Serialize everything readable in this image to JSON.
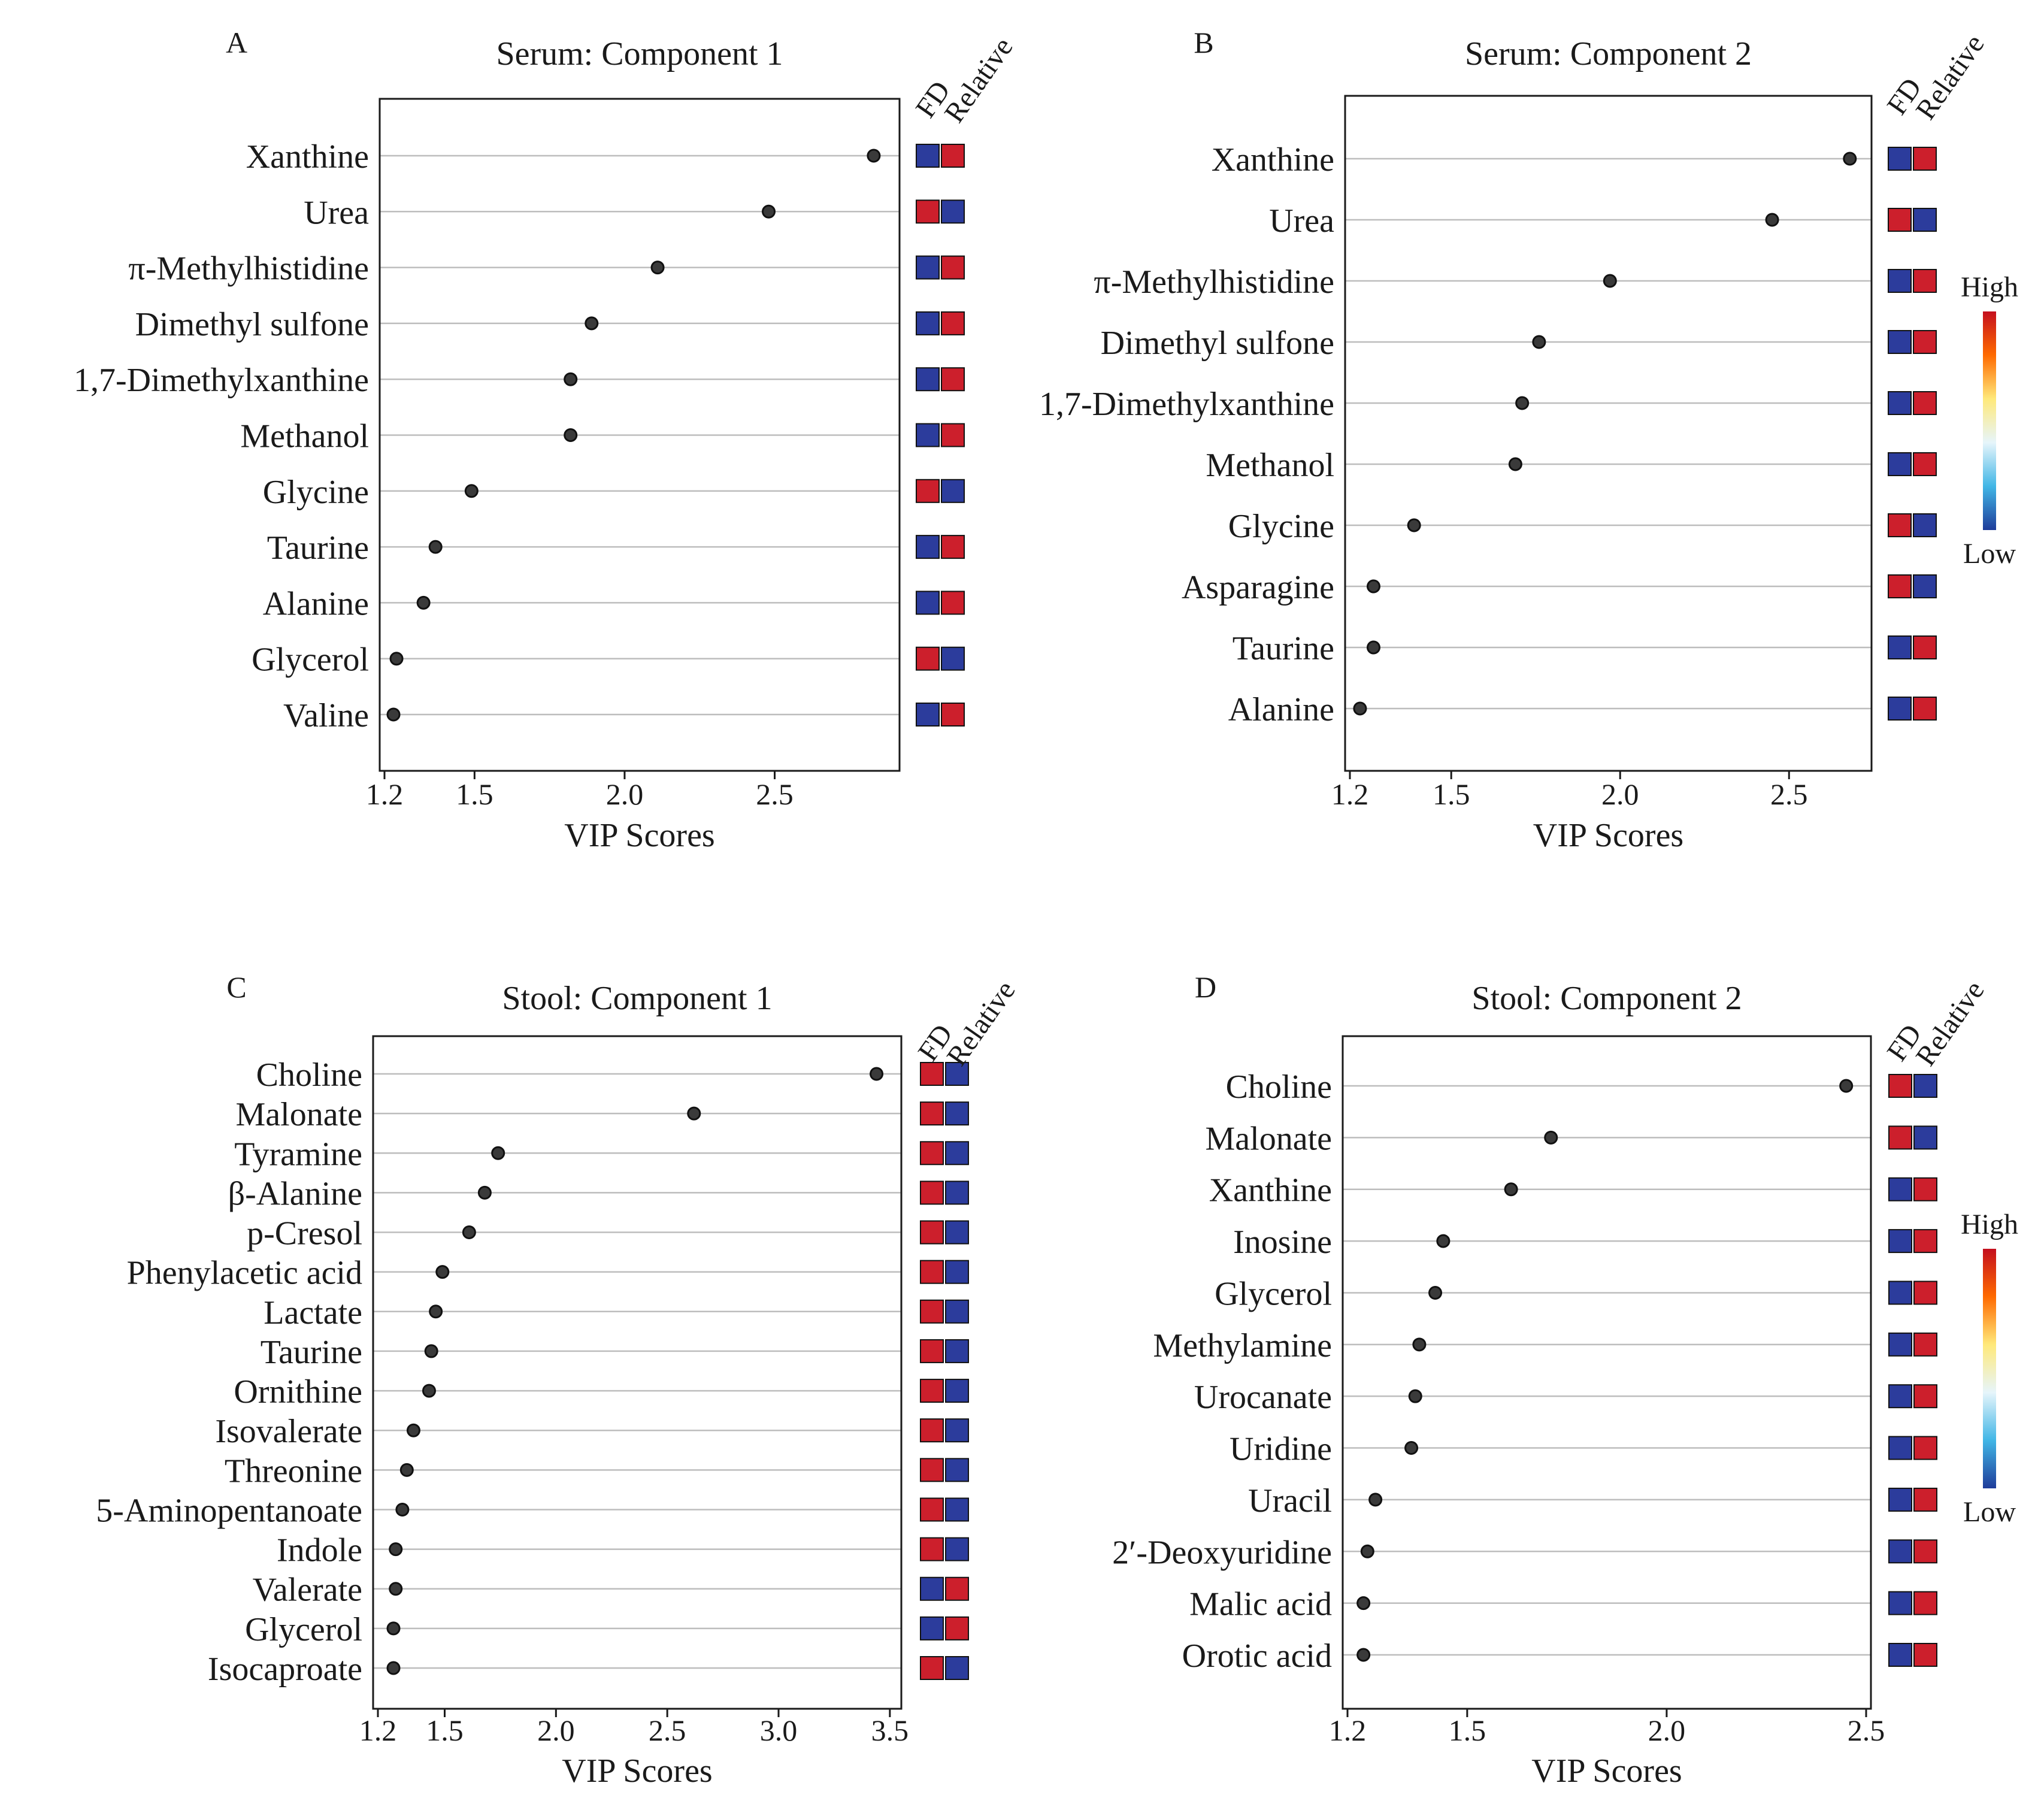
{
  "colors": {
    "fd_high": "#cc1f2c",
    "fd_low": "#2c3c9c",
    "dot": "#3a3a3a",
    "gridline": "#bdbdbd",
    "axis": "#1a1a1a",
    "scale_gradient": [
      "#c40f1e",
      "#ff6a00",
      "#ffe97a",
      "#e6f5fb",
      "#41b6e6",
      "#1e3c9a"
    ]
  },
  "header_labels": {
    "fd": "FD",
    "relative": "Relative"
  },
  "color_scale": {
    "high": "High",
    "low": "Low"
  },
  "chart_data": [
    {
      "panel": "A",
      "type": "scatter",
      "title": "Serum: Component 1",
      "xlabel": "VIP Scores",
      "xlim": [
        1.2,
        2.9
      ],
      "xticks": [
        "1.2",
        "1.5",
        "2.0",
        "2.5"
      ],
      "grid": true,
      "categories": [
        "Xanthine",
        "Urea",
        "π-Methylhistidine",
        "Dimethyl sulfone",
        "1,7-Dimethylxanthine",
        "Methanol",
        "Glycine",
        "Taurine",
        "Alanine",
        "Glycerol",
        "Valine"
      ],
      "values": [
        2.83,
        2.48,
        2.11,
        1.89,
        1.82,
        1.82,
        1.49,
        1.37,
        1.33,
        1.24,
        1.23
      ],
      "fd": [
        "low",
        "high",
        "low",
        "low",
        "low",
        "low",
        "high",
        "low",
        "low",
        "high",
        "low"
      ],
      "relative": [
        "high",
        "low",
        "high",
        "high",
        "high",
        "high",
        "low",
        "high",
        "high",
        "low",
        "high"
      ]
    },
    {
      "panel": "B",
      "type": "scatter",
      "title": "Serum: Component 2",
      "xlabel": "VIP Scores",
      "xlim": [
        1.2,
        2.73
      ],
      "xticks": [
        "1.2",
        "1.5",
        "2.0",
        "2.5"
      ],
      "grid": true,
      "categories": [
        "Xanthine",
        "Urea",
        "π-Methylhistidine",
        "Dimethyl sulfone",
        "1,7-Dimethylxanthine",
        "Methanol",
        "Glycine",
        "Asparagine",
        "Taurine",
        "Alanine"
      ],
      "values": [
        2.68,
        2.45,
        1.97,
        1.76,
        1.71,
        1.69,
        1.39,
        1.27,
        1.27,
        1.23
      ],
      "fd": [
        "low",
        "high",
        "low",
        "low",
        "low",
        "low",
        "high",
        "high",
        "low",
        "low"
      ],
      "relative": [
        "high",
        "low",
        "high",
        "high",
        "high",
        "high",
        "low",
        "low",
        "high",
        "high"
      ]
    },
    {
      "panel": "C",
      "type": "scatter",
      "title": "Stool: Component 1",
      "xlabel": "VIP Scores",
      "xlim": [
        1.2,
        3.53
      ],
      "xticks": [
        "1.2",
        "1.5",
        "2.0",
        "2.5",
        "3.0",
        "3.5"
      ],
      "grid": true,
      "categories": [
        "Choline",
        "Malonate",
        "Tyramine",
        "β-Alanine",
        "p-Cresol",
        "Phenylacetic acid",
        "Lactate",
        "Taurine",
        "Ornithine",
        "Isovalerate",
        "Threonine",
        "5-Aminopentanoate",
        "Indole",
        "Valerate",
        "Glycerol",
        "Isocaproate"
      ],
      "values": [
        3.44,
        2.62,
        1.74,
        1.68,
        1.61,
        1.49,
        1.46,
        1.44,
        1.43,
        1.36,
        1.33,
        1.31,
        1.28,
        1.28,
        1.27,
        1.27
      ],
      "fd": [
        "high",
        "high",
        "high",
        "high",
        "high",
        "high",
        "high",
        "high",
        "high",
        "high",
        "high",
        "high",
        "high",
        "low",
        "low",
        "high"
      ],
      "relative": [
        "low",
        "low",
        "low",
        "low",
        "low",
        "low",
        "low",
        "low",
        "low",
        "low",
        "low",
        "low",
        "low",
        "high",
        "high",
        "low"
      ]
    },
    {
      "panel": "D",
      "type": "scatter",
      "title": "Stool: Component 2",
      "xlabel": "VIP Scores",
      "xlim": [
        1.2,
        2.5
      ],
      "xticks": [
        "1.2",
        "1.5",
        "2.0",
        "2.5"
      ],
      "grid": true,
      "categories": [
        "Choline",
        "Malonate",
        "Xanthine",
        "Inosine",
        "Glycerol",
        "Methylamine",
        "Urocanate",
        "Uridine",
        "Uracil",
        "2′-Deoxyuridine",
        "Malic acid",
        "Orotic acid"
      ],
      "values": [
        2.45,
        1.71,
        1.61,
        1.44,
        1.42,
        1.38,
        1.37,
        1.36,
        1.27,
        1.25,
        1.24,
        1.24
      ],
      "fd": [
        "high",
        "high",
        "low",
        "low",
        "low",
        "low",
        "low",
        "low",
        "low",
        "low",
        "low",
        "low"
      ],
      "relative": [
        "low",
        "low",
        "high",
        "high",
        "high",
        "high",
        "high",
        "high",
        "high",
        "high",
        "high",
        "high"
      ]
    }
  ]
}
